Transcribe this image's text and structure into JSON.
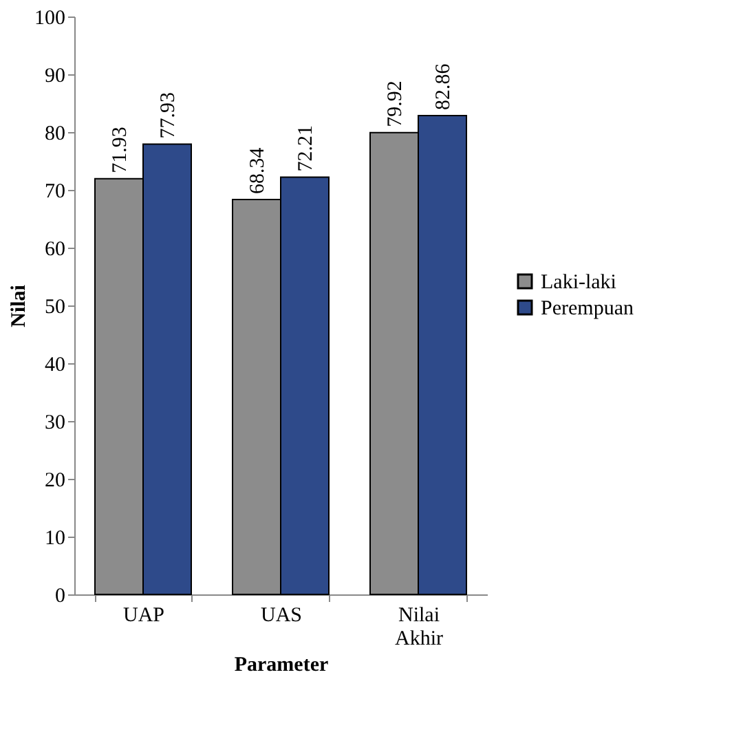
{
  "chart_data": {
    "type": "bar",
    "xlabel": "Parameter",
    "ylabel": "Nilai",
    "categories": [
      "UAP",
      "UAS",
      "Nilai Akhir"
    ],
    "series": [
      {
        "name": "Laki-laki",
        "color": "#8c8c8c",
        "values": [
          71.93,
          68.34,
          79.92
        ]
      },
      {
        "name": "Perempuan",
        "color": "#2e4a8a",
        "values": [
          77.93,
          72.21,
          82.86
        ]
      }
    ],
    "ylim": [
      0,
      100
    ],
    "yticks": [
      0,
      10,
      20,
      30,
      40,
      50,
      60,
      70,
      80,
      90,
      100
    ],
    "data_labels": true,
    "grid": false,
    "legend": "right"
  }
}
